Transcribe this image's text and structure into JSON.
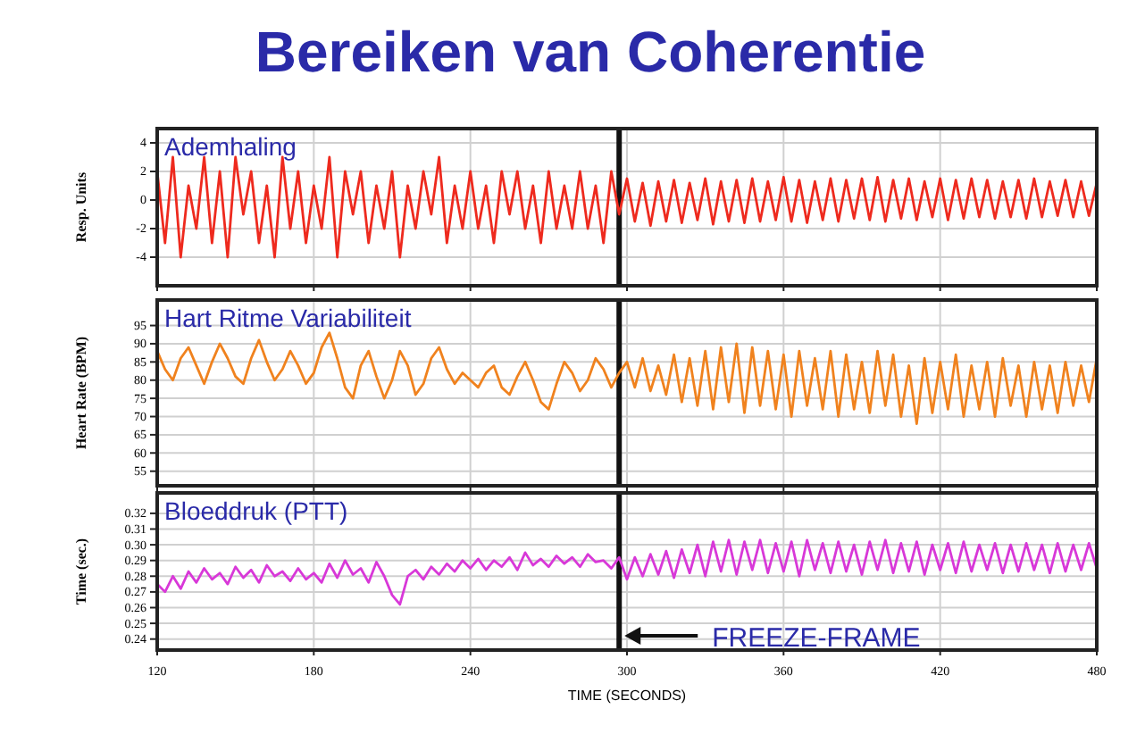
{
  "chart_data": [
    {
      "type": "line",
      "title": "Bereiken van Coherentie",
      "subtitle": "Ademhaling",
      "ylabel": "Resp. Units",
      "x": [
        120,
        123,
        126,
        129,
        132,
        135,
        138,
        141,
        144,
        147,
        150,
        153,
        156,
        159,
        162,
        165,
        168,
        171,
        174,
        177,
        180,
        183,
        186,
        189,
        192,
        195,
        198,
        201,
        204,
        207,
        210,
        213,
        216,
        219,
        222,
        225,
        228,
        231,
        234,
        237,
        240,
        243,
        246,
        249,
        252,
        255,
        258,
        261,
        264,
        267,
        270,
        273,
        276,
        279,
        282,
        285,
        288,
        291,
        294,
        297,
        300,
        303,
        306,
        309,
        312,
        315,
        318,
        321,
        324,
        327,
        330,
        333,
        336,
        339,
        342,
        345,
        348,
        351,
        354,
        357,
        360,
        363,
        366,
        369,
        372,
        375,
        378,
        381,
        384,
        387,
        390,
        393,
        396,
        399,
        402,
        405,
        408,
        411,
        414,
        417,
        420,
        423,
        426,
        429,
        432,
        435,
        438,
        441,
        444,
        447,
        450,
        453,
        456,
        459,
        462,
        465,
        468,
        471,
        474,
        477,
        480
      ],
      "series": [
        {
          "color": "#ee2a1e",
          "values": [
            2,
            -3,
            3,
            -4,
            1,
            -2,
            3,
            -3,
            2,
            -4,
            3,
            -1,
            2,
            -3,
            1,
            -4,
            3,
            -2,
            2,
            -3,
            1,
            -2,
            3,
            -4,
            2,
            -1,
            2,
            -3,
            1,
            -2,
            2,
            -4,
            1,
            -2,
            2,
            -1,
            3,
            -3,
            1,
            -2,
            2,
            -2,
            1,
            -3,
            2,
            -1,
            2,
            -2,
            1,
            -3,
            2,
            -2,
            1,
            -2,
            2,
            -2,
            1,
            -3,
            2,
            -1,
            1.5,
            -1.5,
            1.2,
            -1.8,
            1.3,
            -1.5,
            1.4,
            -1.6,
            1.2,
            -1.4,
            1.5,
            -1.7,
            1.3,
            -1.5,
            1.4,
            -1.6,
            1.5,
            -1.5,
            1.3,
            -1.4,
            1.6,
            -1.5,
            1.4,
            -1.6,
            1.3,
            -1.4,
            1.5,
            -1.5,
            1.4,
            -1.3,
            1.5,
            -1.4,
            1.6,
            -1.5,
            1.4,
            -1.3,
            1.5,
            -1.4,
            1.3,
            -1.2,
            1.5,
            -1.4,
            1.4,
            -1.3,
            1.5,
            -1.2,
            1.4,
            -1.3,
            1.3,
            -1.2,
            1.4,
            -1.3,
            1.5,
            -1.2,
            1.3,
            -1.1,
            1.4,
            -1.2,
            1.3,
            -1.1,
            1.2
          ]
        }
      ],
      "xlim": [
        120,
        480
      ],
      "xticks": [
        120,
        180,
        240,
        300,
        360,
        420,
        480
      ],
      "ylim": [
        -6,
        5
      ],
      "yticks": [
        -4,
        -2,
        0,
        2,
        4
      ],
      "grid": true,
      "tick_labels": "y",
      "ref_lines": [
        {
          "axis": "x",
          "value": 297,
          "color": "#111111"
        }
      ]
    },
    {
      "type": "line",
      "subtitle": "Hart Ritme Variabiliteit",
      "ylabel": "Heart Rate (BPM)",
      "x": [
        120,
        123,
        126,
        129,
        132,
        135,
        138,
        141,
        144,
        147,
        150,
        153,
        156,
        159,
        162,
        165,
        168,
        171,
        174,
        177,
        180,
        183,
        186,
        189,
        192,
        195,
        198,
        201,
        204,
        207,
        210,
        213,
        216,
        219,
        222,
        225,
        228,
        231,
        234,
        237,
        240,
        243,
        246,
        249,
        252,
        255,
        258,
        261,
        264,
        267,
        270,
        273,
        276,
        279,
        282,
        285,
        288,
        291,
        294,
        297,
        300,
        303,
        306,
        309,
        312,
        315,
        318,
        321,
        324,
        327,
        330,
        333,
        336,
        339,
        342,
        345,
        348,
        351,
        354,
        357,
        360,
        363,
        366,
        369,
        372,
        375,
        378,
        381,
        384,
        387,
        390,
        393,
        396,
        399,
        402,
        405,
        408,
        411,
        414,
        417,
        420,
        423,
        426,
        429,
        432,
        435,
        438,
        441,
        444,
        447,
        450,
        453,
        456,
        459,
        462,
        465,
        468,
        471,
        474,
        477,
        480
      ],
      "series": [
        {
          "color": "#f0821e",
          "values": [
            88,
            83,
            80,
            86,
            89,
            84,
            79,
            85,
            90,
            86,
            81,
            79,
            86,
            91,
            85,
            80,
            83,
            88,
            84,
            79,
            82,
            89,
            93,
            86,
            78,
            75,
            84,
            88,
            81,
            75,
            80,
            88,
            84,
            76,
            79,
            86,
            89,
            83,
            79,
            82,
            80,
            78,
            82,
            84,
            78,
            76,
            81,
            85,
            80,
            74,
            72,
            79,
            85,
            82,
            77,
            80,
            86,
            83,
            78,
            82,
            85,
            78,
            86,
            77,
            84,
            76,
            87,
            74,
            86,
            73,
            88,
            72,
            89,
            74,
            90,
            71,
            89,
            73,
            88,
            72,
            87,
            70,
            88,
            73,
            86,
            72,
            88,
            70,
            87,
            72,
            85,
            71,
            88,
            73,
            87,
            70,
            84,
            68,
            86,
            71,
            85,
            72,
            87,
            70,
            84,
            72,
            85,
            70,
            86,
            73,
            84,
            70,
            85,
            72,
            84,
            71,
            85,
            73,
            84,
            74,
            86
          ]
        }
      ],
      "xlim": [
        120,
        480
      ],
      "xticks": [
        120,
        180,
        240,
        300,
        360,
        420,
        480
      ],
      "ylim": [
        51,
        102
      ],
      "yticks": [
        55,
        60,
        65,
        70,
        75,
        80,
        85,
        90,
        95
      ],
      "grid": true,
      "tick_labels": "y",
      "ref_lines": [
        {
          "axis": "x",
          "value": 297,
          "color": "#111111"
        }
      ]
    },
    {
      "type": "line",
      "subtitle": "Bloeddruk (PTT)",
      "ylabel": "Time (sec.)",
      "xlabel": "TIME (SECONDS)",
      "x": [
        120,
        123,
        126,
        129,
        132,
        135,
        138,
        141,
        144,
        147,
        150,
        153,
        156,
        159,
        162,
        165,
        168,
        171,
        174,
        177,
        180,
        183,
        186,
        189,
        192,
        195,
        198,
        201,
        204,
        207,
        210,
        213,
        216,
        219,
        222,
        225,
        228,
        231,
        234,
        237,
        240,
        243,
        246,
        249,
        252,
        255,
        258,
        261,
        264,
        267,
        270,
        273,
        276,
        279,
        282,
        285,
        288,
        291,
        294,
        297,
        300,
        303,
        306,
        309,
        312,
        315,
        318,
        321,
        324,
        327,
        330,
        333,
        336,
        339,
        342,
        345,
        348,
        351,
        354,
        357,
        360,
        363,
        366,
        369,
        372,
        375,
        378,
        381,
        384,
        387,
        390,
        393,
        396,
        399,
        402,
        405,
        408,
        411,
        414,
        417,
        420,
        423,
        426,
        429,
        432,
        435,
        438,
        441,
        444,
        447,
        450,
        453,
        456,
        459,
        462,
        465,
        468,
        471,
        474,
        477,
        480
      ],
      "series": [
        {
          "color": "#d838d8",
          "values": [
            0.275,
            0.27,
            0.28,
            0.272,
            0.283,
            0.276,
            0.285,
            0.278,
            0.282,
            0.275,
            0.286,
            0.279,
            0.284,
            0.276,
            0.287,
            0.28,
            0.283,
            0.277,
            0.285,
            0.278,
            0.282,
            0.276,
            0.288,
            0.279,
            0.29,
            0.281,
            0.285,
            0.276,
            0.289,
            0.28,
            0.268,
            0.262,
            0.28,
            0.284,
            0.278,
            0.286,
            0.281,
            0.288,
            0.283,
            0.29,
            0.285,
            0.291,
            0.284,
            0.29,
            0.286,
            0.292,
            0.284,
            0.295,
            0.287,
            0.291,
            0.286,
            0.293,
            0.288,
            0.292,
            0.286,
            0.294,
            0.289,
            0.29,
            0.285,
            0.292,
            0.278,
            0.292,
            0.28,
            0.294,
            0.281,
            0.296,
            0.279,
            0.297,
            0.282,
            0.3,
            0.28,
            0.302,
            0.283,
            0.303,
            0.281,
            0.302,
            0.284,
            0.303,
            0.282,
            0.301,
            0.283,
            0.302,
            0.28,
            0.303,
            0.284,
            0.301,
            0.282,
            0.302,
            0.283,
            0.3,
            0.281,
            0.302,
            0.284,
            0.303,
            0.282,
            0.301,
            0.283,
            0.302,
            0.281,
            0.3,
            0.284,
            0.301,
            0.282,
            0.302,
            0.283,
            0.3,
            0.284,
            0.301,
            0.282,
            0.3,
            0.283,
            0.301,
            0.284,
            0.3,
            0.282,
            0.301,
            0.283,
            0.3,
            0.284,
            0.301,
            0.285
          ]
        }
      ],
      "xlim": [
        120,
        480
      ],
      "xticks": [
        120,
        180,
        240,
        300,
        360,
        420,
        480
      ],
      "ylim": [
        0.233,
        0.333
      ],
      "yticks": [
        {
          "value": 0.24,
          "label": "0.24"
        },
        {
          "value": 0.25,
          "label": "0.25"
        },
        {
          "value": 0.26,
          "label": "0.26"
        },
        {
          "value": 0.27,
          "label": "0.27"
        },
        {
          "value": 0.28,
          "label": "0.28"
        },
        {
          "value": 0.29,
          "label": "0.29"
        },
        {
          "value": 0.3,
          "label": "0.30"
        },
        {
          "value": 0.31,
          "label": "0.31"
        },
        {
          "value": 0.32,
          "label": "0.32"
        }
      ],
      "grid": true,
      "ref_lines": [
        {
          "axis": "x",
          "value": 297,
          "color": "#111111",
          "label": "FREEZE-FRAME"
        }
      ]
    }
  ]
}
